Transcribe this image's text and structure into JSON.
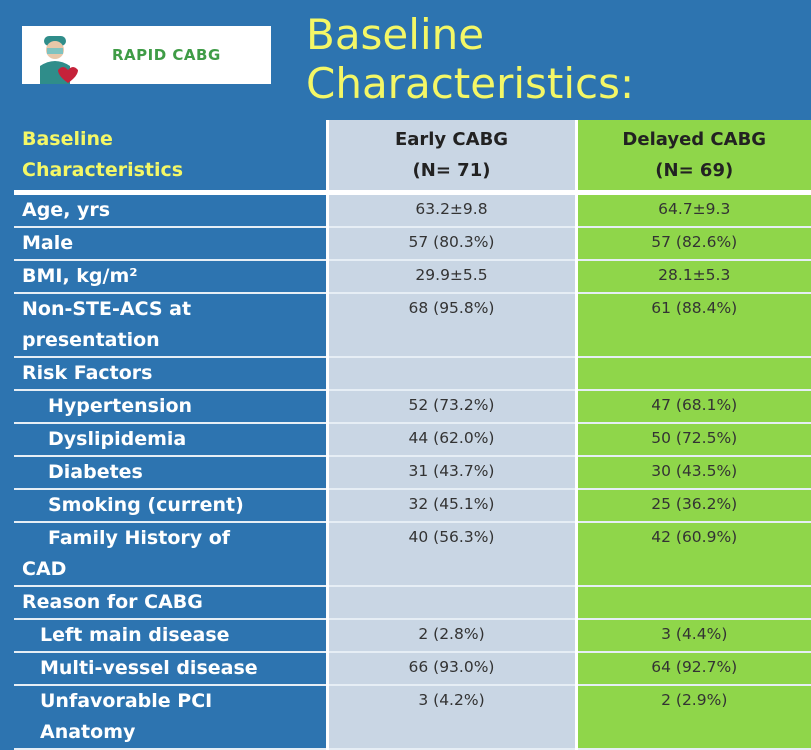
{
  "logo": {
    "text": "RAPID CABG"
  },
  "title": {
    "line1": "Baseline",
    "line2": "Characteristics:"
  },
  "header": {
    "label": [
      "Baseline",
      "Characteristics"
    ],
    "early": [
      "Early CABG",
      "(N= 71)"
    ],
    "delayed": [
      "Delayed CABG",
      "(N= 69)"
    ]
  },
  "rows": [
    {
      "label": "Age, yrs",
      "early": "63.2±9.8",
      "delayed": "64.7±9.3"
    },
    {
      "label": "Male",
      "early": "57 (80.3%)",
      "delayed": "57 (82.6%)"
    },
    {
      "label": "BMI, kg/m²",
      "early": "29.9±5.5",
      "delayed": "28.1±5.3"
    },
    {
      "label": "Non-STE-ACS at",
      "label2": "presentation",
      "early": "68 (95.8%)",
      "delayed": "61 (88.4%)"
    },
    {
      "label": "Risk Factors",
      "early": "",
      "delayed": ""
    },
    {
      "label": "Hypertension",
      "early": "52 (73.2%)",
      "delayed": "47 (68.1%)"
    },
    {
      "label": "Dyslipidemia",
      "early": "44 (62.0%)",
      "delayed": "50 (72.5%)"
    },
    {
      "label": "Diabetes",
      "early": "31 (43.7%)",
      "delayed": "30 (43.5%)"
    },
    {
      "label": "Smoking (current)",
      "early": "32 (45.1%)",
      "delayed": "25 (36.2%)"
    },
    {
      "label": "Family History of",
      "label2": "CAD",
      "early": "40 (56.3%)",
      "delayed": "42 (60.9%)"
    },
    {
      "label": "Reason for CABG",
      "early": "",
      "delayed": ""
    },
    {
      "label": "Left main disease",
      "early": "2 (2.8%)",
      "delayed": "3 (4.4%)"
    },
    {
      "label": "Multi-vessel disease",
      "early": "66 (93.0%)",
      "delayed": "64 (92.7%)"
    },
    {
      "label": "Unfavorable PCI",
      "label2": "Anatomy",
      "early": "3 (4.2%)",
      "delayed": "2 (2.9%)"
    }
  ]
}
